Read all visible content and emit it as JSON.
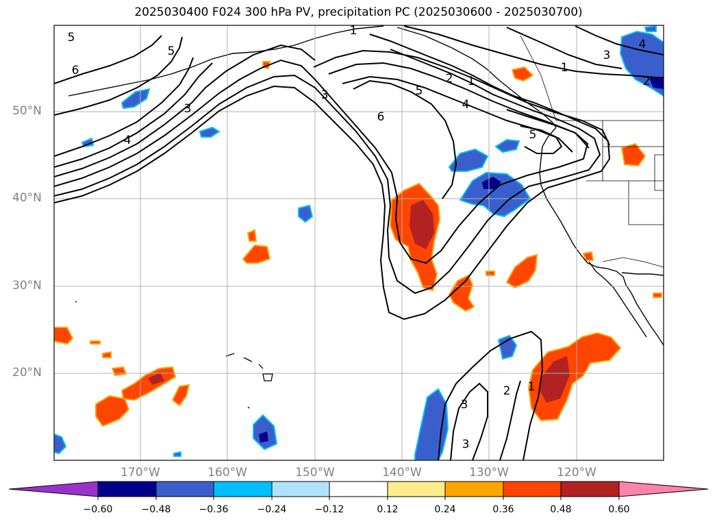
{
  "title": "2025030400 F024 300 hPa PV, precipitation PC (2025030600 - 2025030700)",
  "lat_labels": [
    "50°N",
    "40°N",
    "30°N",
    "20°N"
  ],
  "lon_labels": [
    "170°W",
    "160°W",
    "150°W",
    "140°W",
    "130°W",
    "120°W"
  ],
  "pv_contour_labels": [
    "5",
    "6",
    "5",
    "4",
    "3",
    "1",
    "3",
    "6",
    "5",
    "2",
    "1",
    "4",
    "5",
    "3",
    "4",
    "2",
    "1",
    "2",
    "3",
    "3",
    "1"
  ],
  "colorbar": {
    "ticks": [
      "−0.60",
      "−0.48",
      "−0.36",
      "−0.24",
      "−0.12",
      "0.12",
      "0.24",
      "0.36",
      "0.48",
      "0.60"
    ],
    "colors": [
      "#9932cc",
      "#00008b",
      "#3a5fcd",
      "#00bfff",
      "#b0e2ff",
      "#ffffff",
      "#ffec8b",
      "#ffa500",
      "#ff4500",
      "#b22222",
      "#ff82ab"
    ]
  }
}
